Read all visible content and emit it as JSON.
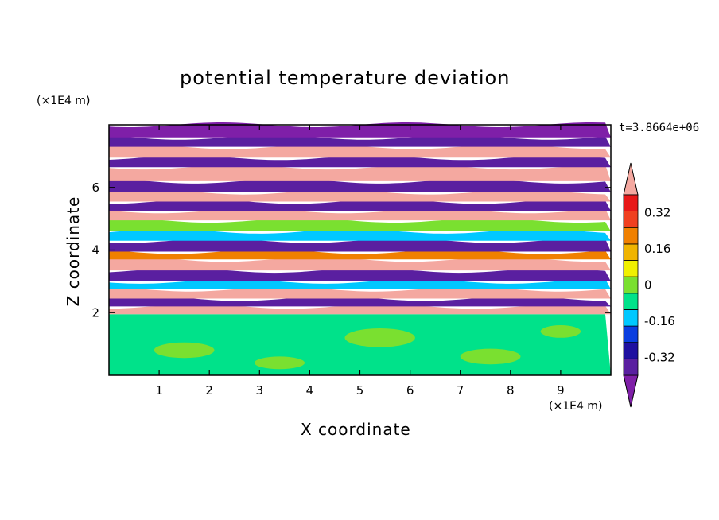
{
  "chart_data": {
    "type": "heatmap",
    "title": "potential temperature deviation",
    "xlabel": "X coordinate",
    "ylabel": "Z coordinate",
    "x_unit": "(×1E4 m)",
    "z_unit": "(×1E4 m)",
    "time_label": "t=3.8664e+06",
    "xlim": [
      0,
      10
    ],
    "ylim": [
      0,
      8
    ],
    "x_ticks": [
      "1",
      "2",
      "3",
      "4",
      "5",
      "6",
      "7",
      "8",
      "9"
    ],
    "y_ticks": [
      "2",
      "4",
      "6"
    ],
    "colorbar": {
      "levels": [
        -0.48,
        -0.4,
        -0.32,
        -0.24,
        -0.16,
        -0.08,
        0,
        0.08,
        0.16,
        0.24,
        0.32,
        0.4,
        0.48
      ],
      "labels": [
        "0.32",
        "0.16",
        "0",
        "-0.16",
        "-0.32"
      ],
      "label_values": [
        0.32,
        0.16,
        0,
        -0.16,
        -0.32
      ],
      "colors": [
        "#7f1fa8",
        "#5a1fa0",
        "#1f10a0",
        "#0a3ee0",
        "#00c8ff",
        "#00e28a",
        "#7ae030",
        "#f0f000",
        "#f0b400",
        "#f08000",
        "#f04020",
        "#e81818",
        "#f4a8a0"
      ]
    },
    "layers": [
      {
        "zmin": 0.0,
        "zmax": 1.95,
        "color": "#00e28a"
      },
      {
        "zmin": 1.95,
        "zmax": 2.2,
        "color": "#f4a8a0"
      },
      {
        "zmin": 2.2,
        "zmax": 2.45,
        "color": "#5a1fa0"
      },
      {
        "zmin": 2.45,
        "zmax": 2.75,
        "color": "#f4a8a0"
      },
      {
        "zmin": 2.75,
        "zmax": 3.0,
        "color": "#00c8ff"
      },
      {
        "zmin": 3.0,
        "zmax": 3.35,
        "color": "#5a1fa0"
      },
      {
        "zmin": 3.35,
        "zmax": 3.7,
        "color": "#f4a8a0"
      },
      {
        "zmin": 3.7,
        "zmax": 3.95,
        "color": "#f08000"
      },
      {
        "zmin": 3.95,
        "zmax": 4.3,
        "color": "#5a1fa0"
      },
      {
        "zmin": 4.3,
        "zmax": 4.6,
        "color": "#00c8ff"
      },
      {
        "zmin": 4.6,
        "zmax": 4.95,
        "color": "#7ae030"
      },
      {
        "zmin": 4.95,
        "zmax": 5.25,
        "color": "#f4a8a0"
      },
      {
        "zmin": 5.25,
        "zmax": 5.55,
        "color": "#5a1fa0"
      },
      {
        "zmin": 5.55,
        "zmax": 5.85,
        "color": "#f4a8a0"
      },
      {
        "zmin": 5.85,
        "zmax": 6.2,
        "color": "#5a1fa0"
      },
      {
        "zmin": 6.2,
        "zmax": 6.65,
        "color": "#f4a8a0"
      },
      {
        "zmin": 6.65,
        "zmax": 6.95,
        "color": "#5a1fa0"
      },
      {
        "zmin": 6.95,
        "zmax": 7.3,
        "color": "#f4a8a0"
      },
      {
        "zmin": 7.3,
        "zmax": 7.6,
        "color": "#5a1fa0"
      },
      {
        "zmin": 7.6,
        "zmax": 8.0,
        "color": "#7f1fa8"
      }
    ]
  }
}
